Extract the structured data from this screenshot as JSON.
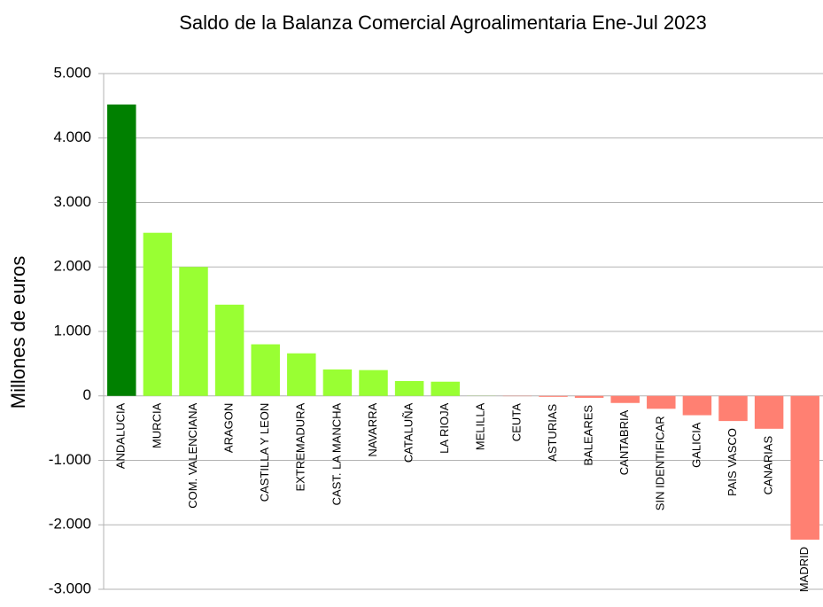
{
  "chart_data": {
    "type": "bar",
    "title": "Saldo de la Balanza Comercial Agroalimentaria Ene-Jul 2023",
    "y_label": "Millones de euros",
    "categories": [
      "ANDALUCIA",
      "MURCIA",
      "COM. VALENCIANA",
      "ARAGON",
      "CASTILLA Y LEON",
      "EXTREMADURA",
      "CAST. LA MANCHA",
      "NAVARRA",
      "CATALUÑA",
      "LA RIOJA",
      "MELILLA",
      "CEUTA",
      "ASTURIAS",
      "BALEARES",
      "CANTABRIA",
      "SIN IDENTIFICAR",
      "GALICIA",
      "PAIS VASCO",
      "CANARIAS",
      "MADRID"
    ],
    "values": [
      4520,
      2530,
      2000,
      1415,
      800,
      660,
      410,
      400,
      230,
      220,
      2,
      -5,
      -15,
      -30,
      -110,
      -200,
      -300,
      -390,
      -510,
      -2230
    ],
    "colors": [
      "#008000",
      "#99ff33",
      "#99ff33",
      "#99ff33",
      "#99ff33",
      "#99ff33",
      "#99ff33",
      "#99ff33",
      "#99ff33",
      "#99ff33",
      "#99ff33",
      "#ff8072",
      "#ff8072",
      "#ff8072",
      "#ff8072",
      "#ff8072",
      "#ff8072",
      "#ff8072",
      "#ff8072",
      "#ff8072"
    ],
    "ylim": [
      -3000,
      5000
    ],
    "yticks": [
      {
        "value": -3000,
        "label": "-3.000"
      },
      {
        "value": -2000,
        "label": "-2.000"
      },
      {
        "value": -1000,
        "label": "-1.000"
      },
      0,
      {
        "value": 1000,
        "label": "1.000"
      },
      {
        "value": 2000,
        "label": "2.000"
      },
      {
        "value": 3000,
        "label": "3.000"
      },
      {
        "value": 4000,
        "label": "4.000"
      },
      {
        "value": 5000,
        "label": "5.000"
      }
    ],
    "grid": true
  }
}
